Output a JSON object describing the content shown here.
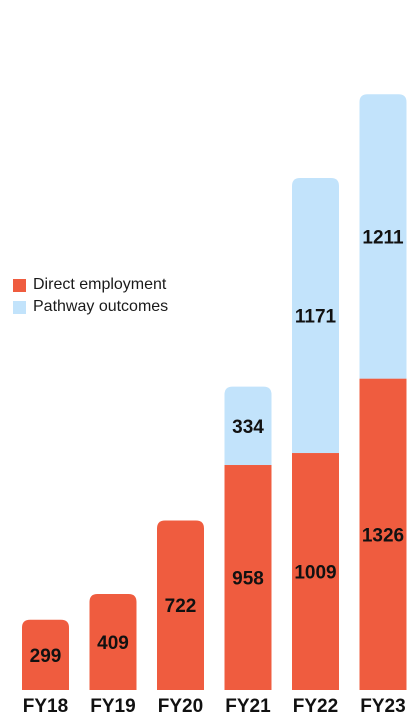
{
  "chart_data": {
    "type": "bar",
    "stacked": true,
    "categories": [
      "FY18",
      "FY19",
      "FY20",
      "FY21",
      "FY22",
      "FY23"
    ],
    "series": [
      {
        "name": "Direct employment",
        "values": [
          299,
          409,
          722,
          958,
          1009,
          1326
        ],
        "color": "#ef5c3f"
      },
      {
        "name": "Pathway outcomes",
        "values": [
          0,
          0,
          0,
          334,
          1171,
          1211
        ],
        "color": "#c2e3fb"
      }
    ],
    "title": "",
    "xlabel": "",
    "ylabel": "",
    "ylim": [
      0,
      2640
    ],
    "grid": false,
    "legend_position": "middle-left"
  }
}
